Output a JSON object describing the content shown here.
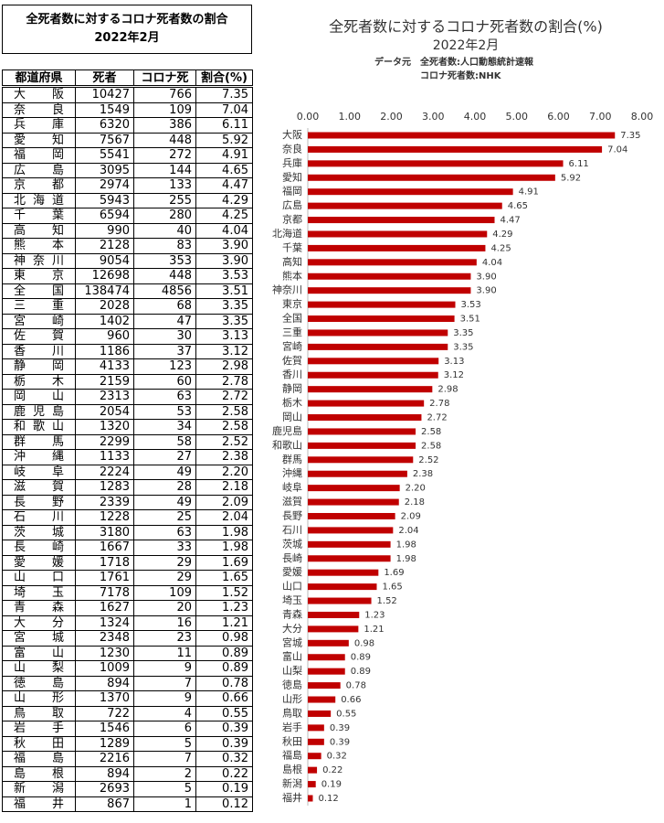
{
  "table": {
    "title": "全死者数に対するコロナ死者数の割合",
    "subtitle": "2022年2月",
    "headers": [
      "都道府県",
      "死者",
      "コロナ死",
      "割合(%)"
    ],
    "rows": [
      [
        "大阪",
        "10427",
        "766",
        "7.35"
      ],
      [
        "奈良",
        "1549",
        "109",
        "7.04"
      ],
      [
        "兵庫",
        "6320",
        "386",
        "6.11"
      ],
      [
        "愛知",
        "7567",
        "448",
        "5.92"
      ],
      [
        "福岡",
        "5541",
        "272",
        "4.91"
      ],
      [
        "広島",
        "3095",
        "144",
        "4.65"
      ],
      [
        "京都",
        "2974",
        "133",
        "4.47"
      ],
      [
        "北海道",
        "5943",
        "255",
        "4.29"
      ],
      [
        "千葉",
        "6594",
        "280",
        "4.25"
      ],
      [
        "高知",
        "990",
        "40",
        "4.04"
      ],
      [
        "熊本",
        "2128",
        "83",
        "3.90"
      ],
      [
        "神奈川",
        "9054",
        "353",
        "3.90"
      ],
      [
        "東京",
        "12698",
        "448",
        "3.53"
      ],
      [
        "全国",
        "138474",
        "4856",
        "3.51"
      ],
      [
        "三重",
        "2028",
        "68",
        "3.35"
      ],
      [
        "宮崎",
        "1402",
        "47",
        "3.35"
      ],
      [
        "佐賀",
        "960",
        "30",
        "3.13"
      ],
      [
        "香川",
        "1186",
        "37",
        "3.12"
      ],
      [
        "静岡",
        "4133",
        "123",
        "2.98"
      ],
      [
        "栃木",
        "2159",
        "60",
        "2.78"
      ],
      [
        "岡山",
        "2313",
        "63",
        "2.72"
      ],
      [
        "鹿児島",
        "2054",
        "53",
        "2.58"
      ],
      [
        "和歌山",
        "1320",
        "34",
        "2.58"
      ],
      [
        "群馬",
        "2299",
        "58",
        "2.52"
      ],
      [
        "沖縄",
        "1133",
        "27",
        "2.38"
      ],
      [
        "岐阜",
        "2224",
        "49",
        "2.20"
      ],
      [
        "滋賀",
        "1283",
        "28",
        "2.18"
      ],
      [
        "長野",
        "2339",
        "49",
        "2.09"
      ],
      [
        "石川",
        "1228",
        "25",
        "2.04"
      ],
      [
        "茨城",
        "3180",
        "63",
        "1.98"
      ],
      [
        "長崎",
        "1667",
        "33",
        "1.98"
      ],
      [
        "愛媛",
        "1718",
        "29",
        "1.69"
      ],
      [
        "山口",
        "1761",
        "29",
        "1.65"
      ],
      [
        "埼玉",
        "7178",
        "109",
        "1.52"
      ],
      [
        "青森",
        "1627",
        "20",
        "1.23"
      ],
      [
        "大分",
        "1324",
        "16",
        "1.21"
      ],
      [
        "宮城",
        "2348",
        "23",
        "0.98"
      ],
      [
        "富山",
        "1230",
        "11",
        "0.89"
      ],
      [
        "山梨",
        "1009",
        "9",
        "0.89"
      ],
      [
        "徳島",
        "894",
        "7",
        "0.78"
      ],
      [
        "山形",
        "1370",
        "9",
        "0.66"
      ],
      [
        "鳥取",
        "722",
        "4",
        "0.55"
      ],
      [
        "岩手",
        "1546",
        "6",
        "0.39"
      ],
      [
        "秋田",
        "1289",
        "5",
        "0.39"
      ],
      [
        "福島",
        "2216",
        "7",
        "0.32"
      ],
      [
        "島根",
        "894",
        "2",
        "0.22"
      ],
      [
        "新潟",
        "2693",
        "5",
        "0.19"
      ],
      [
        "福井",
        "867",
        "1",
        "0.12"
      ]
    ]
  },
  "chart_data": {
    "type": "bar",
    "orientation": "horizontal",
    "title": "全死者数に対するコロナ死者数の割合(%)",
    "subtitle": "2022年2月",
    "notes": [
      "データ元",
      "全死者数:人口動態統計速報",
      "コロナ死者数:NHK"
    ],
    "categories": [
      "大阪",
      "奈良",
      "兵庫",
      "愛知",
      "福岡",
      "広島",
      "京都",
      "北海道",
      "千葉",
      "高知",
      "熊本",
      "神奈川",
      "東京",
      "全国",
      "三重",
      "宮崎",
      "佐賀",
      "香川",
      "静岡",
      "栃木",
      "岡山",
      "鹿児島",
      "和歌山",
      "群馬",
      "沖縄",
      "岐阜",
      "滋賀",
      "長野",
      "石川",
      "茨城",
      "長崎",
      "愛媛",
      "山口",
      "埼玉",
      "青森",
      "大分",
      "宮城",
      "富山",
      "山梨",
      "徳島",
      "山形",
      "鳥取",
      "岩手",
      "秋田",
      "福島",
      "島根",
      "新潟",
      "福井"
    ],
    "values": [
      7.35,
      7.04,
      6.11,
      5.92,
      4.91,
      4.65,
      4.47,
      4.29,
      4.25,
      4.04,
      3.9,
      3.9,
      3.53,
      3.51,
      3.35,
      3.35,
      3.13,
      3.12,
      2.98,
      2.78,
      2.72,
      2.58,
      2.58,
      2.52,
      2.38,
      2.2,
      2.18,
      2.09,
      2.04,
      1.98,
      1.98,
      1.69,
      1.65,
      1.52,
      1.23,
      1.21,
      0.98,
      0.89,
      0.89,
      0.78,
      0.66,
      0.55,
      0.39,
      0.39,
      0.32,
      0.22,
      0.19,
      0.12
    ],
    "value_labels": [
      "7.35",
      "7.04",
      "6.11",
      "5.92",
      "4.91",
      "4.65",
      "4.47",
      "4.29",
      "4.25",
      "4.04",
      "3.90",
      "3.90",
      "3.53",
      "3.51",
      "3.35",
      "3.35",
      "3.13",
      "3.12",
      "2.98",
      "2.78",
      "2.72",
      "2.58",
      "2.58",
      "2.52",
      "2.38",
      "2.20",
      "2.18",
      "2.09",
      "2.04",
      "1.98",
      "1.98",
      "1.69",
      "1.65",
      "1.52",
      "1.23",
      "1.21",
      "0.98",
      "0.89",
      "0.89",
      "0.78",
      "0.66",
      "0.55",
      "0.39",
      "0.39",
      "0.32",
      "0.22",
      "0.19",
      "0.12"
    ],
    "color": "#c00000",
    "xlim": [
      0,
      8
    ],
    "xticks": [
      {
        "value": 0,
        "label": "0.00"
      },
      {
        "value": 1,
        "label": "1.00"
      },
      {
        "value": 2,
        "label": "2.00"
      },
      {
        "value": 3,
        "label": "3.00"
      },
      {
        "value": 4,
        "label": "4.00"
      },
      {
        "value": 5,
        "label": "5.00"
      },
      {
        "value": 6,
        "label": "6.00"
      },
      {
        "value": 7,
        "label": "7.00"
      },
      {
        "value": 8,
        "label": "8.00"
      }
    ]
  }
}
